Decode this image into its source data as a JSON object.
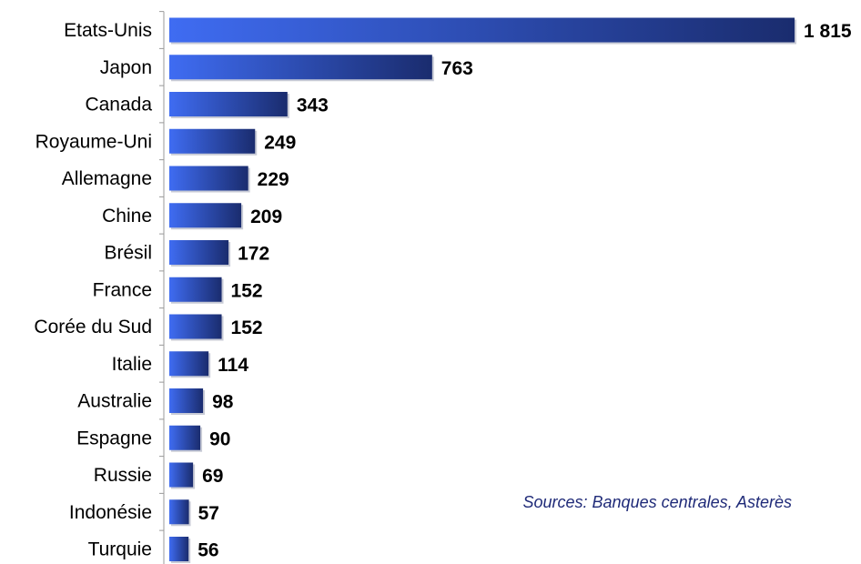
{
  "chart_data": {
    "type": "bar",
    "orientation": "horizontal",
    "categories": [
      "Etats-Unis",
      "Japon",
      "Canada",
      "Royaume-Uni",
      "Allemagne",
      "Chine",
      "Brésil",
      "France",
      "Corée du Sud",
      "Italie",
      "Australie",
      "Espagne",
      "Russie",
      "Indonésie",
      "Turquie"
    ],
    "values": [
      1815,
      763,
      343,
      249,
      229,
      209,
      172,
      152,
      152,
      114,
      98,
      90,
      69,
      57,
      56
    ],
    "value_labels": [
      "1 815",
      "763",
      "343",
      "249",
      "229",
      "209",
      "172",
      "152",
      "152",
      "114",
      "98",
      "90",
      "69",
      "57",
      "56"
    ],
    "title": "",
    "xlabel": "",
    "ylabel": "",
    "xlim": [
      0,
      1815
    ],
    "grid": false,
    "legend": "none",
    "colors": {
      "bar_light": "#3f6cf2",
      "bar_dark": "#1a2c6e",
      "axis": "#999999",
      "source_text": "#1f2a78"
    },
    "annotations": [
      "Sources: Banques centrales, Asterès"
    ]
  }
}
